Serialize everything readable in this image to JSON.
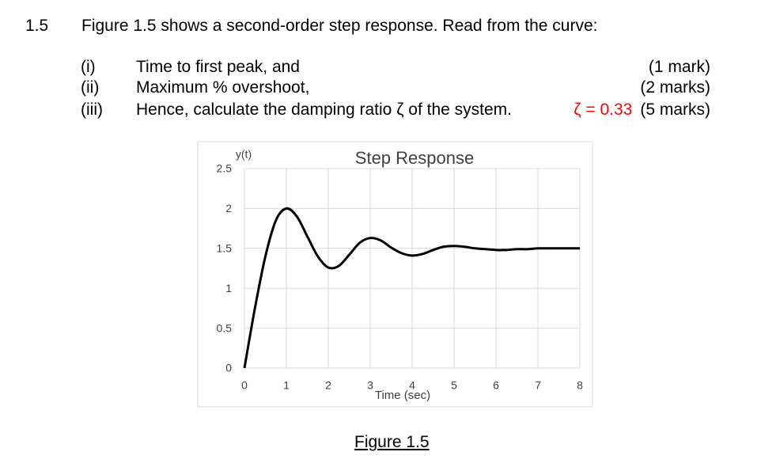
{
  "question": {
    "number": "1.5",
    "text": "Figure 1.5 shows a second-order step response. Read from the curve:",
    "items": [
      {
        "label": "(i)",
        "text": "Time to first peak, and",
        "marks": "(1 mark)"
      },
      {
        "label": "(ii)",
        "text": "Maximum % overshoot,",
        "marks": "(2 marks)"
      },
      {
        "label": "(iii)",
        "text": "Hence, calculate the damping ratio ζ of the system.",
        "answer": "ζ = 0.33",
        "marks": "(5 marks)"
      }
    ]
  },
  "caption": "Figure 1.5",
  "chart_data": {
    "type": "line",
    "title": "Step Response",
    "x_label": "Time (sec)",
    "y_label": "y(t)",
    "x": [
      0,
      0.25,
      0.5,
      0.75,
      1,
      1.25,
      1.5,
      1.75,
      2,
      2.25,
      2.5,
      2.75,
      3,
      3.25,
      3.5,
      3.75,
      4,
      4.25,
      4.5,
      4.75,
      5,
      5.25,
      5.5,
      5.75,
      6,
      6.25,
      6.5,
      6.75,
      7,
      7.25,
      7.5,
      7.75,
      8
    ],
    "series": [
      {
        "color": "#000000",
        "values": [
          0,
          0.75,
          1.4,
          1.85,
          2.0,
          1.9,
          1.65,
          1.4,
          1.26,
          1.28,
          1.42,
          1.57,
          1.63,
          1.6,
          1.51,
          1.44,
          1.41,
          1.43,
          1.48,
          1.52,
          1.53,
          1.52,
          1.5,
          1.49,
          1.48,
          1.48,
          1.49,
          1.49,
          1.5,
          1.5,
          1.5,
          1.5,
          1.5
        ]
      }
    ],
    "xlim": [
      0,
      8
    ],
    "xticks": [
      0,
      1,
      2,
      3,
      4,
      5,
      6,
      7,
      8
    ],
    "ylim": [
      0,
      2.5
    ],
    "yticks": [
      0,
      0.5,
      1,
      1.5,
      2,
      2.5
    ],
    "grid": true
  }
}
